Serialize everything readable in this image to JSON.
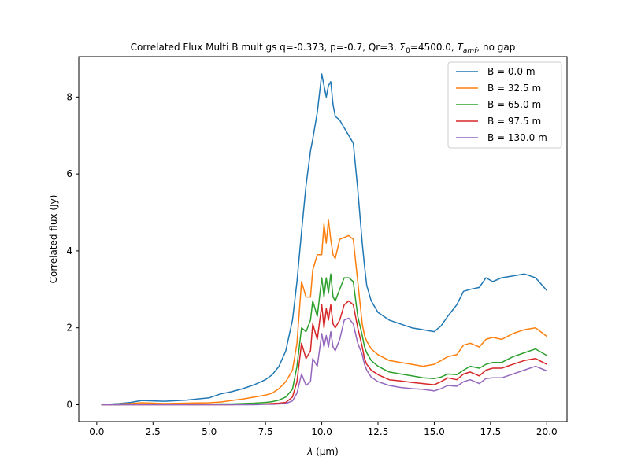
{
  "chart_data": {
    "type": "line",
    "title_parts": {
      "pre": "Correlated Flux Multi B mult gs q=-0.373, p=-0.7, Qr=3, Σ",
      "sub0": "0",
      "mid": "=4500.0, ",
      "t": "T",
      "amf": "amf",
      "post": ", no gap"
    },
    "xlabel_parts": {
      "lambda": "λ",
      "unit": " (μm)"
    },
    "ylabel": "Correlated flux (Jy)",
    "xlim": [
      -0.8,
      20.9
    ],
    "ylim": [
      -0.44,
      9.05
    ],
    "xticks": [
      0.0,
      2.5,
      5.0,
      7.5,
      10.0,
      12.5,
      15.0,
      17.5,
      20.0
    ],
    "xtick_labels": [
      "0.0",
      "2.5",
      "5.0",
      "7.5",
      "10.0",
      "12.5",
      "15.0",
      "17.5",
      "20.0"
    ],
    "yticks": [
      0,
      2,
      4,
      6,
      8
    ],
    "ytick_labels": [
      "0",
      "2",
      "4",
      "6",
      "8"
    ],
    "grid": false,
    "legend_position": "top-right",
    "x": [
      0.2,
      1.0,
      1.5,
      2.0,
      2.5,
      3.0,
      4.0,
      5.0,
      5.5,
      6.0,
      6.5,
      7.0,
      7.5,
      7.8,
      8.1,
      8.4,
      8.7,
      8.9,
      9.1,
      9.3,
      9.5,
      9.6,
      9.8,
      10.0,
      10.1,
      10.2,
      10.3,
      10.4,
      10.5,
      10.6,
      10.8,
      11.0,
      11.2,
      11.4,
      11.6,
      11.8,
      11.9,
      12.0,
      12.2,
      12.5,
      13.0,
      13.5,
      14.0,
      14.5,
      15.0,
      15.3,
      15.6,
      16.0,
      16.3,
      16.6,
      17.0,
      17.3,
      17.6,
      18.0,
      18.5,
      19.0,
      19.5,
      20.0
    ],
    "series": [
      {
        "name": "B = 0.0 m",
        "color": "#1f77b4",
        "values": [
          0.0,
          0.03,
          0.06,
          0.11,
          0.1,
          0.09,
          0.12,
          0.18,
          0.28,
          0.34,
          0.42,
          0.52,
          0.65,
          0.78,
          1.0,
          1.4,
          2.2,
          3.2,
          4.5,
          5.7,
          6.6,
          6.9,
          7.6,
          8.6,
          8.3,
          8.0,
          8.3,
          8.4,
          7.8,
          7.5,
          7.4,
          7.2,
          7.0,
          6.8,
          5.6,
          4.2,
          3.6,
          3.1,
          2.7,
          2.4,
          2.2,
          2.1,
          2.0,
          1.95,
          1.9,
          2.05,
          2.3,
          2.6,
          2.95,
          3.0,
          3.05,
          3.3,
          3.2,
          3.3,
          3.35,
          3.4,
          3.3,
          2.97
        ]
      },
      {
        "name": "B = 32.5 m",
        "color": "#ff7f0e",
        "values": [
          0.0,
          0.02,
          0.03,
          0.05,
          0.04,
          0.03,
          0.04,
          0.05,
          0.07,
          0.11,
          0.15,
          0.2,
          0.25,
          0.3,
          0.42,
          0.6,
          0.9,
          1.6,
          3.2,
          2.8,
          2.8,
          3.5,
          3.9,
          3.9,
          4.7,
          4.2,
          4.8,
          4.3,
          3.9,
          3.8,
          4.3,
          4.35,
          4.4,
          4.3,
          3.2,
          2.1,
          1.8,
          1.65,
          1.45,
          1.3,
          1.15,
          1.1,
          1.05,
          1.0,
          1.05,
          1.15,
          1.25,
          1.3,
          1.55,
          1.6,
          1.5,
          1.7,
          1.75,
          1.7,
          1.85,
          1.95,
          2.0,
          1.78
        ]
      },
      {
        "name": "B = 65.0 m",
        "color": "#2ca02c",
        "values": [
          0.0,
          0.0,
          0.01,
          0.01,
          0.01,
          0.01,
          0.01,
          0.01,
          0.02,
          0.02,
          0.03,
          0.04,
          0.06,
          0.08,
          0.12,
          0.2,
          0.4,
          1.0,
          2.0,
          1.9,
          2.2,
          2.7,
          2.3,
          3.3,
          2.8,
          3.3,
          2.9,
          3.4,
          2.8,
          2.7,
          3.0,
          3.3,
          3.3,
          3.2,
          2.3,
          1.8,
          1.5,
          1.35,
          1.15,
          1.0,
          0.85,
          0.8,
          0.75,
          0.7,
          0.68,
          0.72,
          0.8,
          0.78,
          0.9,
          1.0,
          0.95,
          1.05,
          1.1,
          1.1,
          1.25,
          1.35,
          1.45,
          1.28
        ]
      },
      {
        "name": "B = 97.5 m",
        "color": "#d62728",
        "values": [
          0.0,
          0.0,
          0.0,
          0.0,
          0.0,
          0.0,
          0.0,
          0.0,
          0.0,
          0.0,
          0.01,
          0.01,
          0.02,
          0.03,
          0.04,
          0.06,
          0.2,
          0.6,
          1.6,
          1.2,
          1.4,
          2.1,
          1.7,
          2.6,
          2.0,
          2.5,
          2.2,
          2.6,
          2.1,
          2.0,
          2.2,
          2.6,
          2.7,
          2.6,
          2.0,
          1.5,
          1.2,
          1.05,
          0.9,
          0.78,
          0.65,
          0.62,
          0.58,
          0.55,
          0.52,
          0.6,
          0.7,
          0.65,
          0.8,
          0.85,
          0.75,
          0.9,
          0.95,
          0.95,
          1.05,
          1.15,
          1.2,
          1.05
        ]
      },
      {
        "name": "B = 130.0 m",
        "color": "#9467bd",
        "values": [
          0.0,
          0.0,
          0.0,
          0.0,
          0.0,
          0.0,
          0.0,
          0.0,
          0.0,
          0.0,
          0.0,
          0.0,
          0.01,
          0.01,
          0.02,
          0.03,
          0.1,
          0.3,
          0.8,
          0.5,
          0.6,
          1.2,
          1.0,
          1.85,
          1.5,
          1.8,
          1.5,
          1.9,
          1.5,
          1.4,
          1.7,
          2.2,
          2.25,
          2.1,
          1.6,
          1.3,
          1.05,
          0.9,
          0.72,
          0.6,
          0.5,
          0.45,
          0.42,
          0.4,
          0.36,
          0.42,
          0.5,
          0.48,
          0.6,
          0.65,
          0.55,
          0.68,
          0.7,
          0.7,
          0.8,
          0.9,
          1.0,
          0.88
        ]
      }
    ]
  }
}
